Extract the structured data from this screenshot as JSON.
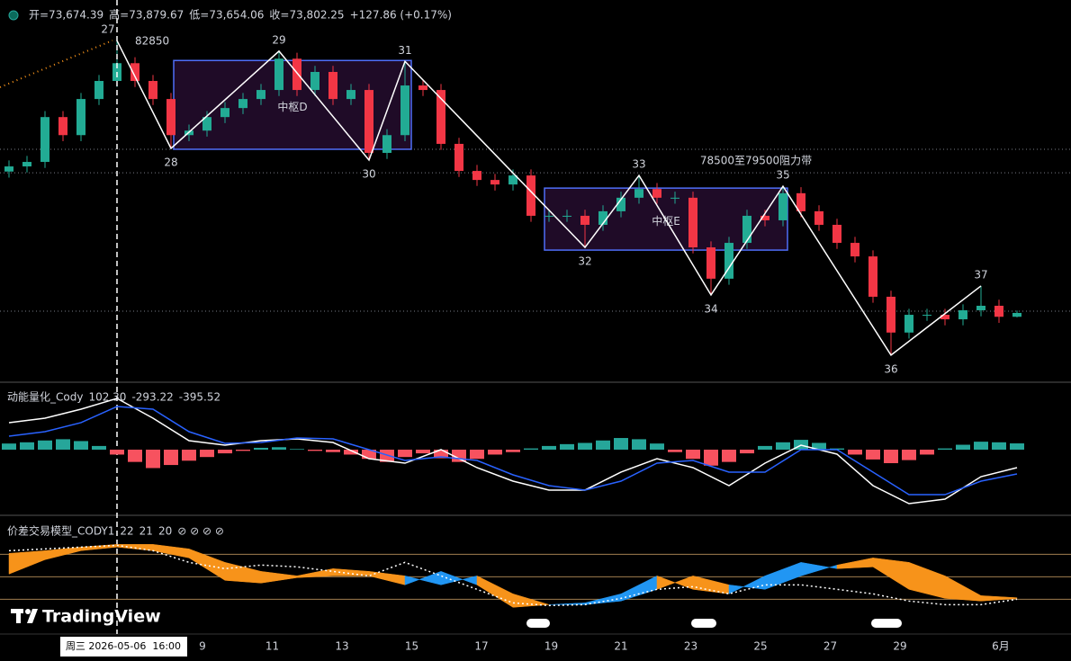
{
  "header": {
    "texts": [
      "开=73,674.39",
      "高=73,879.67",
      "低=73,654.06",
      "收=73,802.25",
      "+127.86 (+0.17%)"
    ]
  },
  "chart_data": [
    {
      "type": "candlestick",
      "up_color": "#22ab94",
      "down_color": "#f23645",
      "ylim": [
        71500,
        84200
      ],
      "open": [
        78500,
        78670,
        78820,
        80310,
        79710,
        80910,
        81510,
        82100,
        81510,
        80910,
        79710,
        79860,
        80310,
        80610,
        80910,
        81210,
        82250,
        81210,
        81810,
        80910,
        81210,
        79120,
        79710,
        81360,
        81210,
        79420,
        78520,
        78220,
        78070,
        78370,
        77030,
        77030,
        77030,
        76730,
        77180,
        77630,
        77920,
        77630,
        77630,
        75980,
        74940,
        76130,
        77030,
        76880,
        77780,
        77180,
        76730,
        76130,
        75680,
        74340,
        73150,
        73740,
        73740,
        73590,
        73890,
        74040,
        73674.39
      ],
      "high": [
        78870,
        79020,
        80510,
        80510,
        81110,
        81710,
        82850,
        82300,
        81710,
        81110,
        80060,
        80510,
        80810,
        81110,
        81410,
        82500,
        82450,
        82010,
        82010,
        81410,
        81410,
        79910,
        82160,
        81560,
        81410,
        79620,
        78720,
        78420,
        78570,
        78570,
        77230,
        77230,
        77230,
        77380,
        77830,
        78370,
        78120,
        77830,
        77830,
        76180,
        76330,
        77230,
        77230,
        78010,
        77980,
        77380,
        76930,
        76330,
        75880,
        74540,
        73940,
        73940,
        73940,
        74090,
        74700,
        74240,
        73879.67
      ],
      "low": [
        78300,
        78470,
        78620,
        79510,
        79510,
        80710,
        81310,
        81310,
        80710,
        79270,
        79510,
        79660,
        80110,
        80410,
        80710,
        81010,
        81010,
        81010,
        80710,
        80710,
        78880,
        78920,
        79510,
        81010,
        79220,
        78320,
        78020,
        77870,
        77870,
        76830,
        76830,
        76830,
        75980,
        76530,
        76980,
        77430,
        77430,
        77430,
        75780,
        74400,
        74740,
        75930,
        76680,
        76680,
        76980,
        76530,
        75930,
        75480,
        74140,
        72400,
        72950,
        73540,
        73390,
        73390,
        73690,
        73474,
        73654.06
      ],
      "close": [
        78670,
        78820,
        80310,
        79710,
        80910,
        81510,
        82100,
        81510,
        80910,
        79710,
        79860,
        80310,
        80610,
        80910,
        81210,
        82250,
        81210,
        81810,
        80910,
        81210,
        79120,
        79710,
        81360,
        81210,
        79420,
        78520,
        78220,
        78070,
        78370,
        77030,
        77030,
        77030,
        76730,
        77180,
        77630,
        77920,
        77630,
        77630,
        75980,
        74940,
        76130,
        77030,
        76880,
        77780,
        77180,
        76730,
        76130,
        75680,
        74340,
        73150,
        73740,
        73740,
        73590,
        73890,
        74040,
        73674.39,
        73802.25
      ],
      "levels": [
        79240,
        78460,
        73860
      ],
      "peak_label": 82850,
      "pivots": {
        "labels": [
          "27",
          "28",
          "29",
          "30",
          "31",
          "32",
          "33",
          "34",
          "35",
          "36",
          "37"
        ],
        "values": [
          82850,
          79270,
          82500,
          78880,
          82160,
          75980,
          78370,
          74400,
          78010,
          72400,
          74700
        ]
      },
      "boxes": [
        {
          "label": "中枢D",
          "ylim": [
            79240,
            82190
          ]
        },
        {
          "label": "中枢E",
          "ylim": [
            75890,
            77950
          ]
        }
      ],
      "annotation": "78500至79500阻力带"
    },
    {
      "type": "macd",
      "title": "动能量化_Cody",
      "ylim": [
        -1055,
        1099
      ],
      "readouts": [
        "102.30",
        "-293.22",
        "-395.52"
      ],
      "histogram": {
        "up_color": "#26a69a",
        "down_color": "#f7525f",
        "values": [
          100,
          120,
          150,
          170,
          140,
          60,
          -80,
          -200,
          -300,
          -250,
          -180,
          -120,
          -60,
          -20,
          30,
          40,
          10,
          -20,
          -40,
          -80,
          -150,
          -200,
          -120,
          -60,
          -140,
          -200,
          -150,
          -80,
          -40,
          20,
          60,
          90,
          110,
          150,
          190,
          170,
          100,
          -40,
          -150,
          -260,
          -200,
          -60,
          60,
          120,
          160,
          110,
          20,
          -80,
          -160,
          -220,
          -170,
          -80,
          20,
          80,
          130,
          120,
          102.3
        ]
      },
      "lines": [
        {
          "color": "#ffffff",
          "values": [
            440,
            513,
            659,
            835,
            513,
            147,
            73,
            147,
            176,
            117,
            -147,
            -220,
            0,
            -293,
            -513,
            -659,
            -659,
            -366,
            -147,
            -293,
            -586,
            -220,
            73,
            -73,
            -586,
            -879,
            -806,
            -440,
            -293.22
          ]
        },
        {
          "color": "#2962ff",
          "values": [
            220,
            293,
            440,
            703,
            659,
            293,
            103,
            117,
            190,
            176,
            0,
            -176,
            -117,
            -176,
            -410,
            -586,
            -659,
            -513,
            -220,
            -176,
            -366,
            -366,
            0,
            0,
            -366,
            -733,
            -733,
            -513,
            -395.52
          ]
        }
      ]
    },
    {
      "type": "band",
      "title": "价差交易模型_CODY1",
      "ylim": [
        -24,
        132
      ],
      "levels": [
        20,
        50,
        80
      ],
      "readouts": [
        22,
        21,
        20
      ],
      "icons": "⊘ ⊘ ⊘ ⊘",
      "series": [
        {
          "color": "#f7931a",
          "values": [
            81.2,
            84.8,
            89.6,
            93.2,
            93.2,
            87.2,
            69.2,
            57.2,
            51.2,
            60.8,
            57.2,
            51.2,
            39.2,
            51.2,
            27.2,
            12.8,
            12.8,
            17.6,
            33.2,
            51.2,
            39.2,
            33.2,
            51.2,
            65.6,
            75.2,
            69.2,
            51.2,
            24.8,
            22
          ]
        },
        {
          "color": "#2196f3",
          "values": [
            53.6,
            72.8,
            84.8,
            89.6,
            84.8,
            75.2,
            45.2,
            41.6,
            48.8,
            51.2,
            51.2,
            39.2,
            57.2,
            39.2,
            9.2,
            12.8,
            15.2,
            27.2,
            51.2,
            33.2,
            27.2,
            51.2,
            69.2,
            60.8,
            63.2,
            33.2,
            21.2,
            17.6,
            21
          ]
        },
        {
          "color": "#ffffff",
          "values": [
            84.8,
            87.2,
            89.6,
            92,
            84.8,
            69.2,
            60.8,
            65.6,
            63.2,
            57.2,
            51.2,
            69.2,
            51.2,
            33.2,
            15.2,
            11.6,
            12.8,
            21.2,
            33.2,
            36.8,
            27.2,
            39.2,
            39.2,
            33.2,
            27.2,
            17.6,
            12.8,
            12.8,
            20
          ]
        }
      ]
    }
  ],
  "x_axis": {
    "labels": [
      "9",
      "11",
      "13",
      "15",
      "17",
      "19",
      "21",
      "23",
      "25",
      "27",
      "29",
      "6月"
    ],
    "crosshair_label": "周三 2026-05-06  16:00"
  },
  "brand": "TradingView"
}
